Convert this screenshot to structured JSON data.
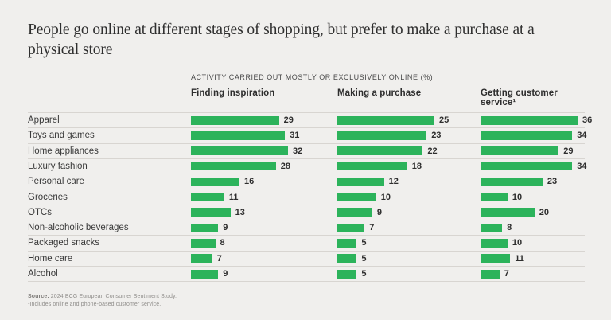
{
  "title": "People go online at different stages of shopping, but prefer to make a purchase at a physical store",
  "subtitle": "ACTIVITY CARRIED OUT MOSTLY OR EXCLUSIVELY ONLINE (%)",
  "chart_data": {
    "type": "bar",
    "orientation": "horizontal",
    "title": "People go online at different stages of shopping, but prefer to make a purchase at a physical store",
    "subtitle": "ACTIVITY CARRIED OUT MOSTLY OR EXCLUSIVELY ONLINE (%)",
    "categories": [
      "Apparel",
      "Toys and games",
      "Home appliances",
      "Luxury fashion",
      "Personal care",
      "Groceries",
      "OTCs",
      "Non-alcoholic beverages",
      "Packaged snacks",
      "Home care",
      "Alcohol"
    ],
    "series": [
      {
        "name": "Finding inspiration",
        "values": [
          29,
          31,
          32,
          28,
          16,
          11,
          13,
          9,
          8,
          7,
          9
        ]
      },
      {
        "name": "Making a purchase",
        "values": [
          25,
          23,
          22,
          18,
          12,
          10,
          9,
          7,
          5,
          5,
          5
        ]
      },
      {
        "name": "Getting customer service¹",
        "values": [
          36,
          34,
          29,
          34,
          23,
          10,
          20,
          8,
          10,
          11,
          7
        ]
      }
    ],
    "value_labels": true,
    "bar_color": "#2cb35b",
    "grid": "row-separators-only",
    "legend_position": "column-headers",
    "xlim": [
      0,
      36
    ]
  },
  "footer": {
    "source_label": "Source:",
    "source_text": " 2024 BCG European Consumer Sentiment Study.",
    "footnote": "¹Includes online and phone-based customer service."
  }
}
